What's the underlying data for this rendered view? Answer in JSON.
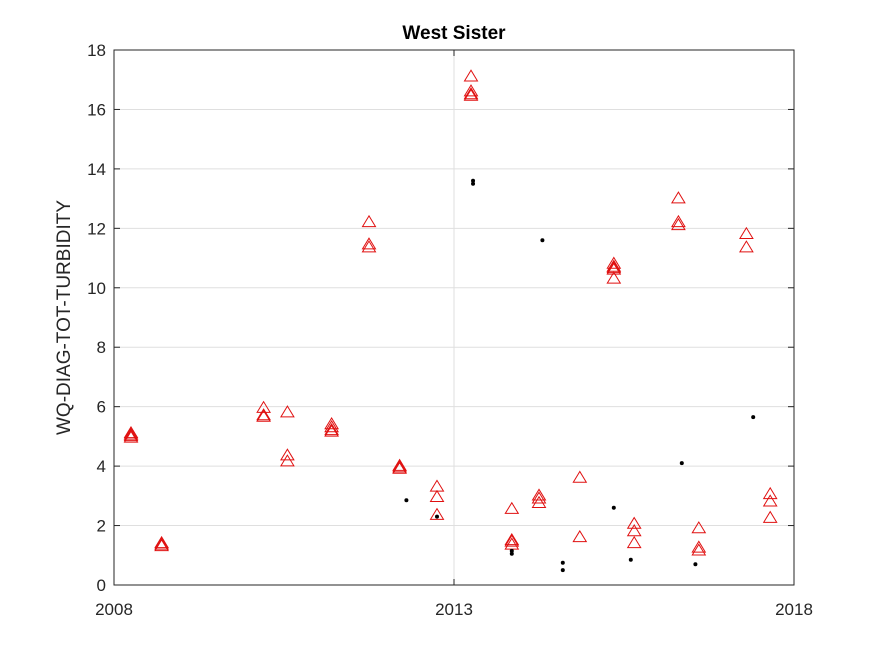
{
  "chart_data": {
    "type": "scatter",
    "title": "West Sister",
    "xlabel": "",
    "ylabel": "WQ-DIAG-TOT-TURBIDITY",
    "xlim": [
      2008,
      2018
    ],
    "ylim": [
      0,
      18
    ],
    "xticks": [
      2008,
      2013,
      2018
    ],
    "yticks": [
      0,
      2,
      4,
      6,
      8,
      10,
      12,
      14,
      16,
      18
    ],
    "grid": {
      "x": [
        2013
      ],
      "y": true
    },
    "legend": "none",
    "colors": {
      "triangles": "#e01010",
      "dots": "#000000"
    },
    "series": [
      {
        "marker": "triangle-open",
        "color": "#e01010",
        "x": [
          2008.25,
          2008.25,
          2008.25,
          2008.25,
          2008.7,
          2008.7,
          2008.7,
          2010.2,
          2010.2,
          2010.2,
          2010.55,
          2010.55,
          2010.55,
          2011.2,
          2011.2,
          2011.2,
          2011.2,
          2011.75,
          2011.75,
          2011.75,
          2012.2,
          2012.2,
          2012.2,
          2012.75,
          2012.75,
          2012.75,
          2013.25,
          2013.25,
          2013.25,
          2013.25,
          2013.85,
          2013.85,
          2013.85,
          2013.85,
          2014.25,
          2014.25,
          2014.25,
          2014.85,
          2014.85,
          2015.35,
          2015.35,
          2015.35,
          2015.35,
          2015.35,
          2015.65,
          2015.65,
          2015.65,
          2016.3,
          2016.3,
          2016.3,
          2016.6,
          2016.6,
          2016.6,
          2017.3,
          2017.3,
          2017.65,
          2017.65,
          2017.65
        ],
        "y": [
          5.1,
          5.05,
          5.0,
          4.95,
          1.4,
          1.35,
          1.3,
          5.95,
          5.7,
          5.65,
          5.8,
          4.35,
          4.15,
          5.4,
          5.3,
          5.2,
          5.15,
          12.2,
          11.45,
          11.35,
          4.0,
          3.95,
          3.9,
          3.3,
          2.95,
          2.35,
          17.1,
          16.6,
          16.5,
          16.45,
          2.55,
          1.5,
          1.45,
          1.35,
          3.0,
          2.9,
          2.75,
          3.6,
          1.6,
          10.8,
          10.7,
          10.65,
          10.6,
          10.3,
          2.05,
          1.8,
          1.4,
          13.0,
          12.2,
          12.1,
          1.9,
          1.25,
          1.15,
          11.8,
          11.35,
          3.05,
          2.8,
          2.25
        ]
      },
      {
        "marker": "point",
        "color": "#000000",
        "x": [
          2012.3,
          2012.75,
          2013.28,
          2013.28,
          2013.85,
          2013.85,
          2014.3,
          2014.6,
          2014.6,
          2015.35,
          2015.6,
          2016.35,
          2016.55,
          2017.4
        ],
        "y": [
          2.85,
          2.3,
          13.6,
          13.5,
          1.15,
          1.05,
          11.6,
          0.75,
          0.5,
          2.6,
          0.85,
          4.1,
          0.7,
          5.65
        ]
      }
    ]
  }
}
